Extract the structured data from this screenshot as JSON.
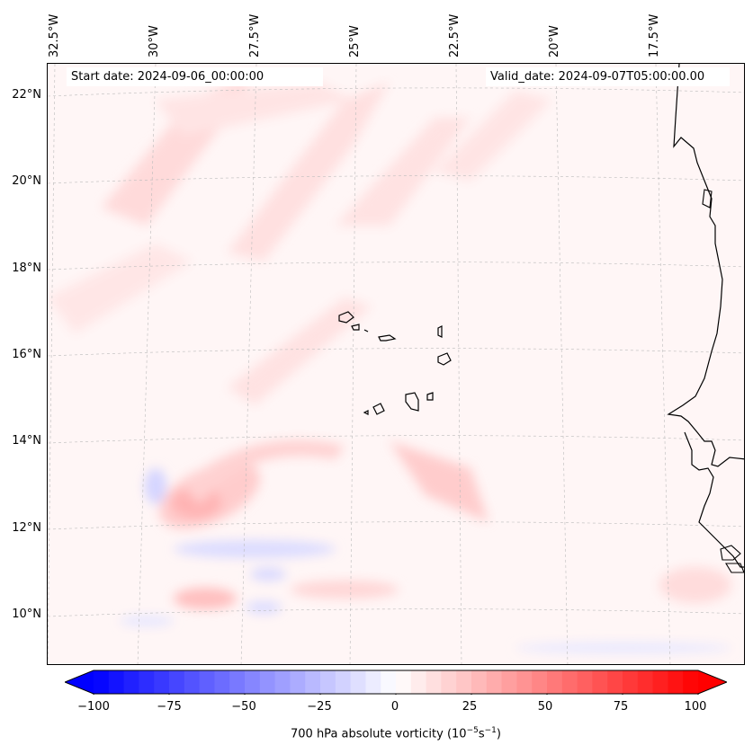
{
  "map": {
    "start_date_text": "Start date: 2024-09-06_00:00:00",
    "valid_date_text": "Valid_date: 2024-09-07T05:00:00.00",
    "longitude_labels": [
      "32.5°W",
      "30°W",
      "27.5°W",
      "25°W",
      "22.5°W",
      "20°W",
      "17.5°W"
    ],
    "latitude_labels": [
      "22°N",
      "20°N",
      "18°N",
      "16°N",
      "14°N",
      "12°N",
      "10°N"
    ],
    "extent": {
      "lon_min": -33.0,
      "lon_max": -15.5,
      "lat_min": 9.0,
      "lat_max": 22.8
    },
    "field": "700 hPa absolute vorticity",
    "features": [
      "Cabo Verde islands",
      "West African coastline (Senegal, Gambia, Guinea-Bissau)"
    ]
  },
  "colorbar": {
    "label": "700 hPa absolute vorticity (10",
    "label_exp1": "−5",
    "label_mid": "s",
    "label_exp2": "−1",
    "label_end": ")",
    "ticks": [
      "−100",
      "−75",
      "−50",
      "−25",
      "0",
      "25",
      "50",
      "75",
      "100"
    ],
    "tick_values": [
      -100,
      -75,
      -50,
      -25,
      0,
      25,
      50,
      75,
      100
    ],
    "min": -100,
    "max": 100,
    "levels": 40,
    "cmap": "bwr",
    "neg_color": "#0000ff",
    "mid_color": "#ffffff",
    "pos_color": "#ff0000",
    "extend": "both"
  }
}
